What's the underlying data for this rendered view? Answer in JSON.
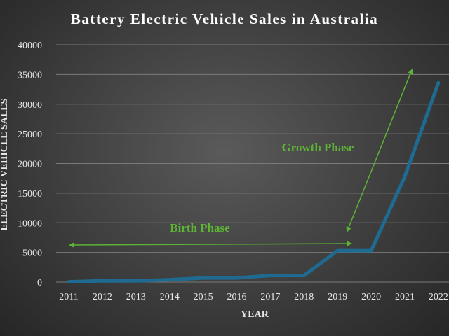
{
  "chart_data": {
    "type": "line",
    "title": "Battery Electric Vehicle Sales in Australia",
    "xlabel": "YEAR",
    "ylabel": "ELECTRIC VEHICLE SALES",
    "categories": [
      "2011",
      "2012",
      "2013",
      "2014",
      "2015",
      "2016",
      "2017",
      "2018",
      "2019",
      "2020",
      "2021",
      "2022"
    ],
    "values": [
      50,
      200,
      200,
      400,
      700,
      700,
      1100,
      1100,
      5300,
      5300,
      17800,
      33600
    ],
    "ylim": [
      0,
      40000
    ],
    "yticks": [
      "0",
      "5000",
      "10000",
      "15000",
      "20000",
      "25000",
      "30000",
      "35000",
      "40000"
    ],
    "grid": true,
    "series_color": "#1f6a91",
    "annotations": [
      {
        "text": "Birth Phase",
        "color": "#5cb335"
      },
      {
        "text": "Growth Phase",
        "color": "#5cb335"
      }
    ]
  }
}
